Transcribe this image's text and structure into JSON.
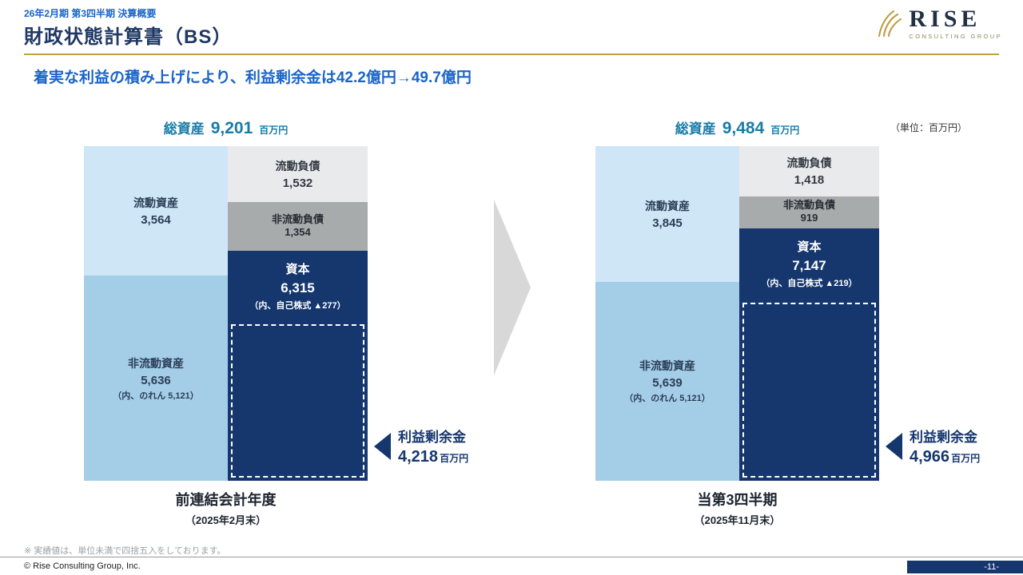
{
  "header": {
    "tag": "26年2月期 第3四半期 決算概要",
    "title": "財政状態計算書（BS）",
    "subtitle": "着実な利益の積み上げにより、利益剰余金は42.2億円→49.7億円",
    "unit_note": "（単位：百万円）"
  },
  "logo": {
    "name": "RISE",
    "sub": "CONSULTING GROUP"
  },
  "chart_data": [
    {
      "type": "stacked-bar-balance-sheet",
      "title": "総資産 9,201 百万円",
      "total_label": "総資産",
      "total_value": "9,201",
      "total_unit": "百万円",
      "total": 9201,
      "assets": [
        {
          "label": "流動資産",
          "value": 3564,
          "value_text": "3,564"
        },
        {
          "label": "非流動資産",
          "value": 5636,
          "value_text": "5,636",
          "note": "（内、のれん 5,121）"
        }
      ],
      "liabilities_equity": [
        {
          "label": "流動負債",
          "value": 1532,
          "value_text": "1,532"
        },
        {
          "label": "非流動負債",
          "value": 1354,
          "value_text": "1,354"
        },
        {
          "label": "資本",
          "value": 6315,
          "value_text": "6,315",
          "note": "（内、自己株式 ▲277）"
        }
      ],
      "retained_earnings": {
        "label": "利益剰余金",
        "value": 4218,
        "value_text": "4,218",
        "unit": "百万円"
      },
      "period_label": "前連結会計年度",
      "period_date": "（2025年2月末）"
    },
    {
      "type": "stacked-bar-balance-sheet",
      "title": "総資産 9,484 百万円",
      "total_label": "総資産",
      "total_value": "9,484",
      "total_unit": "百万円",
      "total": 9484,
      "assets": [
        {
          "label": "流動資産",
          "value": 3845,
          "value_text": "3,845"
        },
        {
          "label": "非流動資産",
          "value": 5639,
          "value_text": "5,639",
          "note": "（内、のれん 5,121）"
        }
      ],
      "liabilities_equity": [
        {
          "label": "流動負債",
          "value": 1418,
          "value_text": "1,418"
        },
        {
          "label": "非流動負債",
          "value": 919,
          "value_text": "919"
        },
        {
          "label": "資本",
          "value": 7147,
          "value_text": "7,147",
          "note": "（内、自己株式 ▲219）"
        }
      ],
      "retained_earnings": {
        "label": "利益剰余金",
        "value": 4966,
        "value_text": "4,966",
        "unit": "百万円"
      },
      "period_label": "当第3四半期",
      "period_date": "（2025年11月末）"
    }
  ],
  "footer": {
    "note": "※ 実績値は、単位未満で四捨五入をしております。",
    "copyright": "© Rise Consulting Group, Inc.",
    "page": "-11-"
  }
}
